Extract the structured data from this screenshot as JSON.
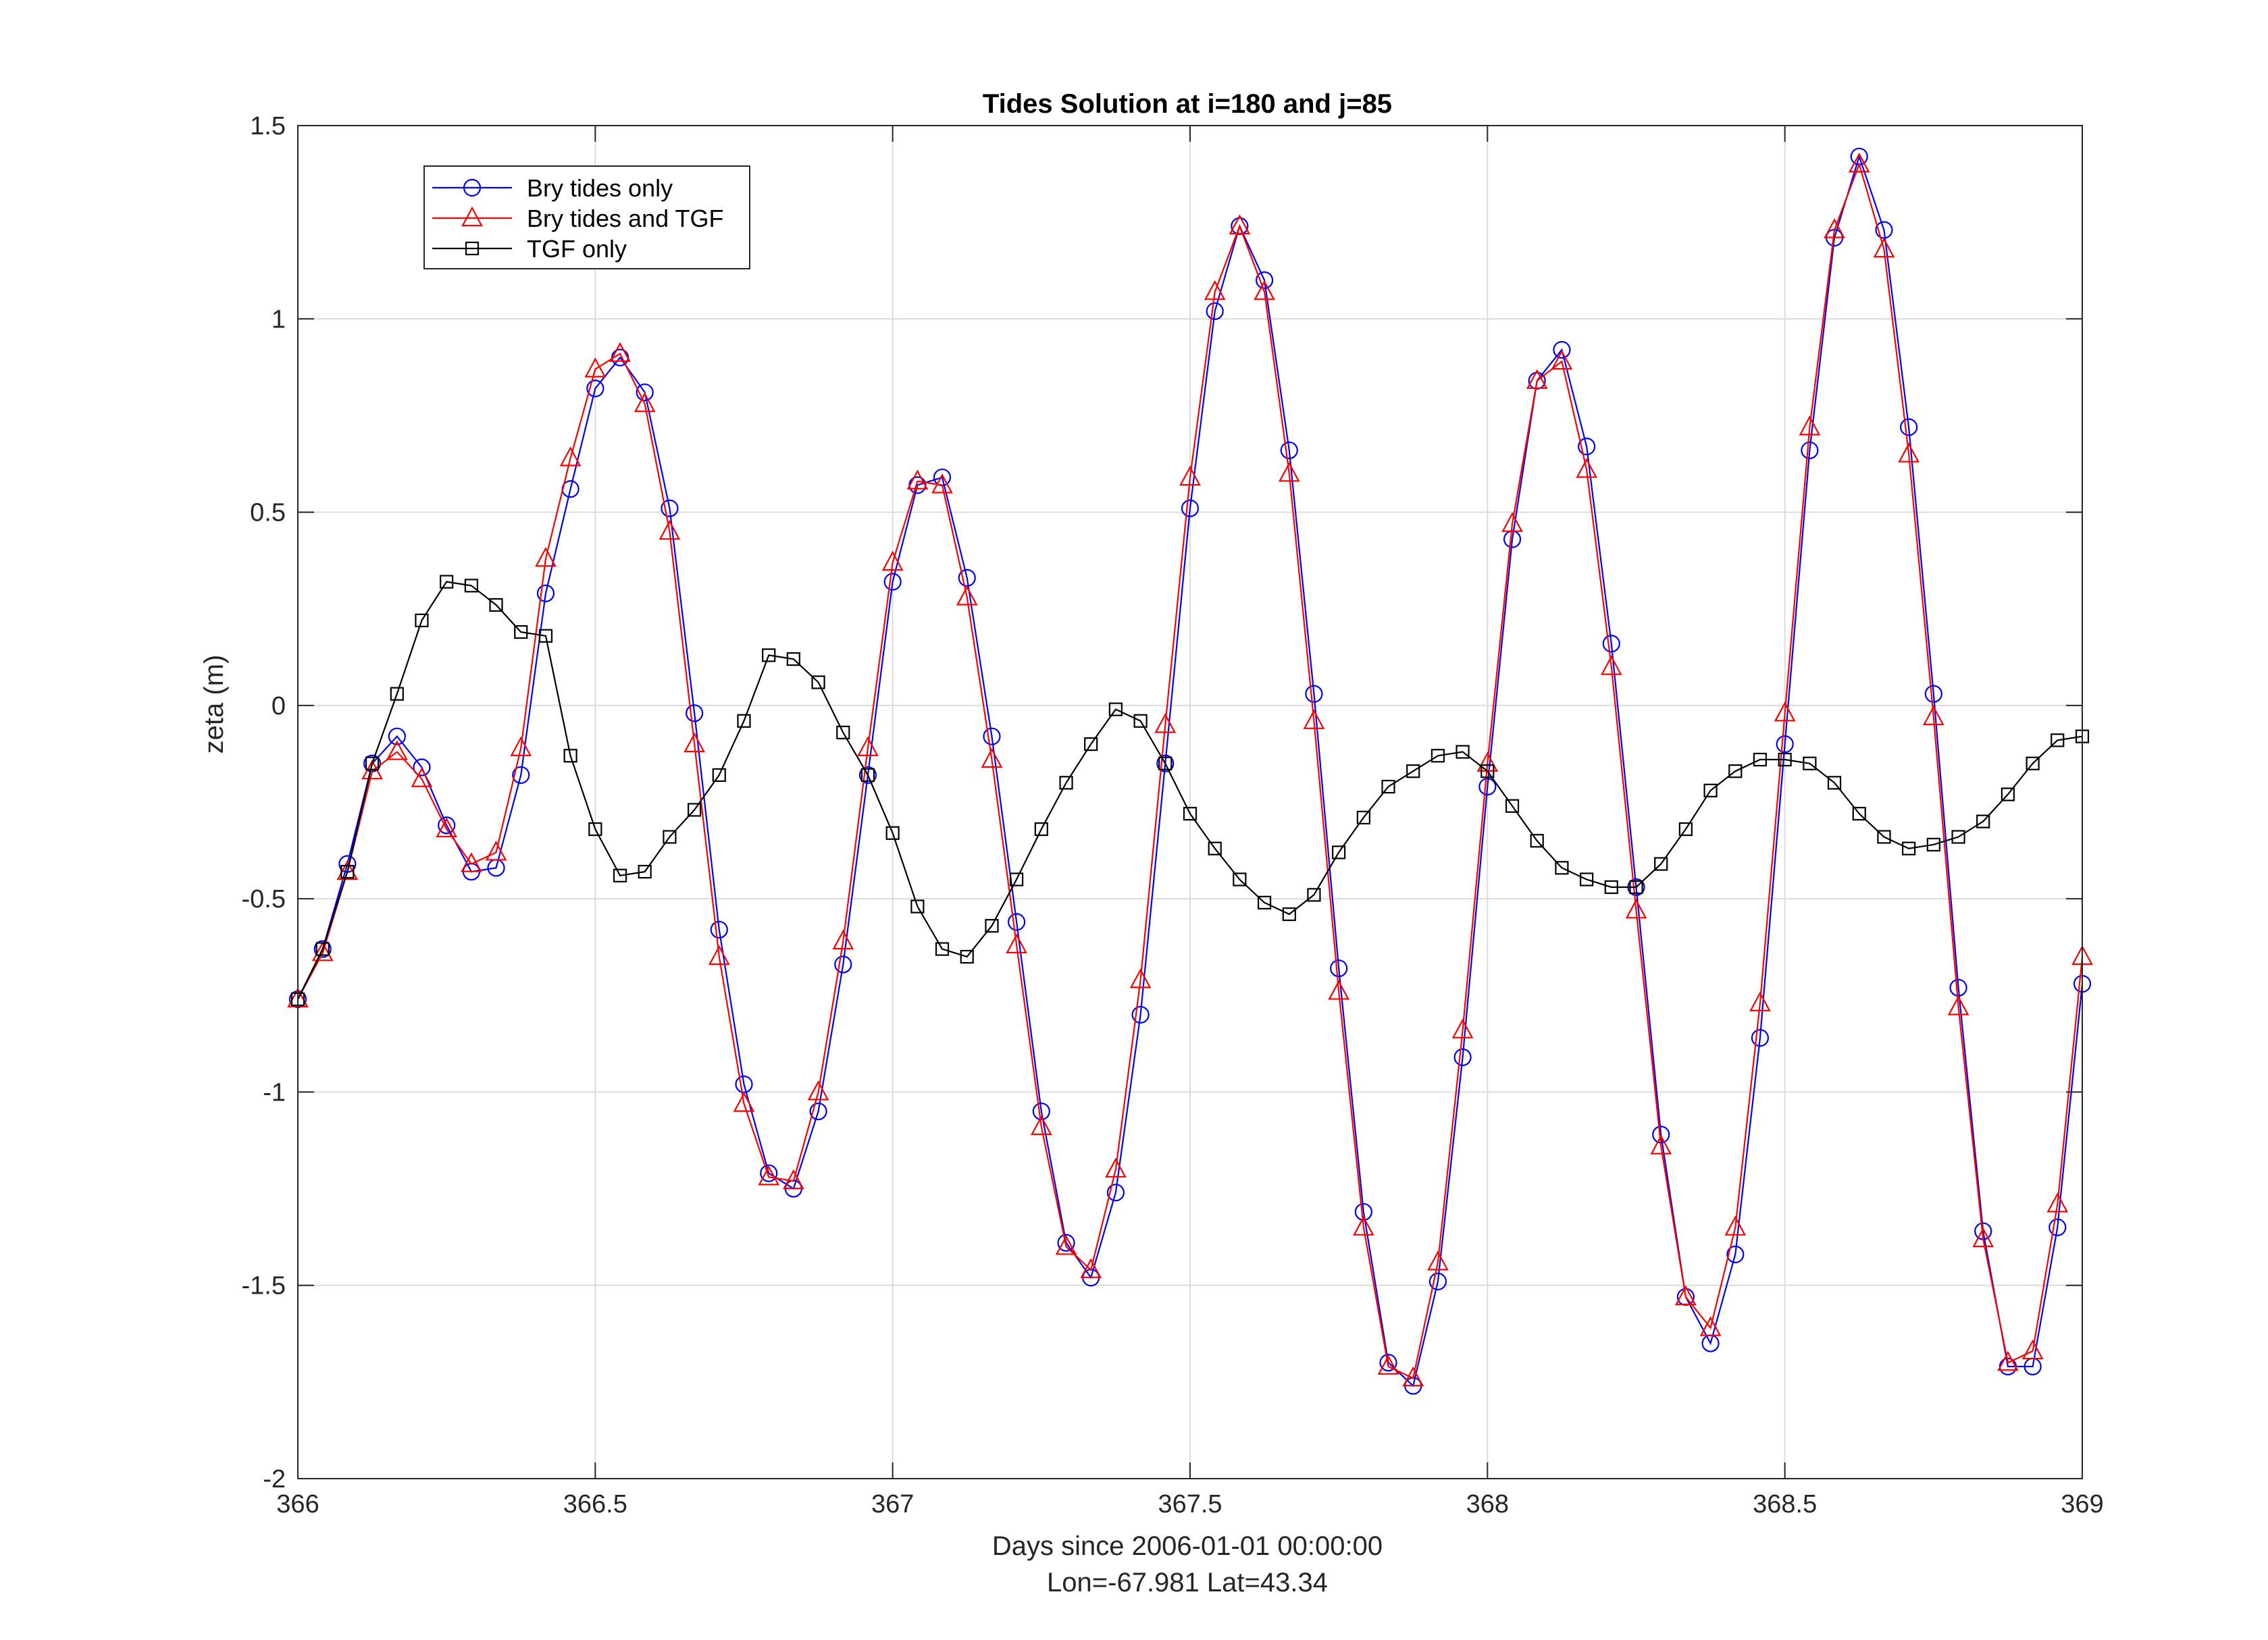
{
  "chart_data": {
    "type": "line",
    "title": "Tides Solution at  i=180 and j=85",
    "xlabel": "Days since 2006-01-01 00:00:00",
    "xlabel2": "Lon=-67.981     Lat=43.34",
    "ylabel": "zeta (m)",
    "xlim": [
      366,
      369
    ],
    "ylim": [
      -2,
      1.5
    ],
    "xticks": [
      366,
      366.5,
      367,
      367.5,
      368,
      368.5,
      369
    ],
    "xtick_labels": [
      "366",
      "366.5",
      "367",
      "367.5",
      "368",
      "368.5",
      "369"
    ],
    "yticks": [
      -2,
      -1.5,
      -1,
      -0.5,
      0,
      0.5,
      1,
      1.5
    ],
    "ytick_labels": [
      "-2",
      "-1.5",
      "-1",
      "-0.5",
      "0",
      "0.5",
      "1",
      "1.5"
    ],
    "grid": true,
    "legend_position": "top-left",
    "x": [
      366.0,
      366.0417,
      366.0833,
      366.125,
      366.1667,
      366.2083,
      366.25,
      366.2917,
      366.3333,
      366.375,
      366.4167,
      366.4583,
      366.5,
      366.5417,
      366.5833,
      366.625,
      366.6667,
      366.7083,
      366.75,
      366.7917,
      366.8333,
      366.875,
      366.9167,
      366.9583,
      367.0,
      367.0417,
      367.0833,
      367.125,
      367.1667,
      367.2083,
      367.25,
      367.2917,
      367.3333,
      367.375,
      367.4167,
      367.4583,
      367.5,
      367.5417,
      367.5833,
      367.625,
      367.6667,
      367.7083,
      367.75,
      367.7917,
      367.8333,
      367.875,
      367.9167,
      367.9583,
      368.0,
      368.0417,
      368.0833,
      368.125,
      368.1667,
      368.2083,
      368.25,
      368.2917,
      368.3333,
      368.375,
      368.4167,
      368.4583,
      368.5,
      368.5417,
      368.5833,
      368.625,
      368.6667,
      368.7083,
      368.75,
      368.7917,
      368.8333,
      368.875,
      368.9167,
      368.9583,
      369.0
    ],
    "series": [
      {
        "name": "Bry tides only",
        "color": "#0000ff",
        "marker": "circle",
        "values": [
          -0.76,
          -0.63,
          -0.41,
          -0.15,
          -0.08,
          -0.16,
          -0.31,
          -0.43,
          -0.42,
          -0.18,
          0.29,
          0.56,
          0.82,
          0.9,
          0.81,
          0.51,
          -0.02,
          -0.58,
          -0.98,
          -1.21,
          -1.25,
          -1.05,
          -0.67,
          -0.18,
          0.32,
          0.57,
          0.59,
          0.33,
          -0.08,
          -0.56,
          -1.05,
          -1.39,
          -1.48,
          -1.26,
          -0.8,
          -0.15,
          0.51,
          1.02,
          1.24,
          1.1,
          0.66,
          0.03,
          -0.68,
          -1.31,
          -1.7,
          -1.76,
          -1.49,
          -0.91,
          -0.21,
          0.43,
          0.84,
          0.92,
          0.67,
          0.16,
          -0.47,
          -1.11,
          -1.53,
          -1.65,
          -1.42,
          -0.86,
          -0.1,
          0.66,
          1.21,
          1.42,
          1.23,
          0.72,
          0.03,
          -0.73,
          -1.36,
          -1.71,
          -1.71,
          -1.35,
          -0.72
        ]
      },
      {
        "name": "Bry tides and TGF",
        "color": "#ff0000",
        "marker": "triangle",
        "values": [
          -0.76,
          -0.64,
          -0.43,
          -0.17,
          -0.12,
          -0.19,
          -0.32,
          -0.41,
          -0.38,
          -0.11,
          0.38,
          0.64,
          0.87,
          0.91,
          0.78,
          0.45,
          -0.1,
          -0.65,
          -1.03,
          -1.22,
          -1.23,
          -1.0,
          -0.61,
          -0.11,
          0.37,
          0.58,
          0.57,
          0.28,
          -0.14,
          -0.62,
          -1.09,
          -1.4,
          -1.46,
          -1.2,
          -0.71,
          -0.05,
          0.59,
          1.07,
          1.24,
          1.07,
          0.6,
          -0.04,
          -0.74,
          -1.35,
          -1.71,
          -1.74,
          -1.44,
          -0.84,
          -0.15,
          0.47,
          0.84,
          0.89,
          0.61,
          0.1,
          -0.53,
          -1.14,
          -1.53,
          -1.61,
          -1.35,
          -0.77,
          -0.02,
          0.72,
          1.23,
          1.4,
          1.18,
          0.65,
          -0.03,
          -0.78,
          -1.38,
          -1.7,
          -1.67,
          -1.29,
          -0.65
        ]
      },
      {
        "name": "TGF only",
        "color": "#000000",
        "marker": "square",
        "values": [
          -0.76,
          -0.63,
          -0.43,
          -0.15,
          0.03,
          0.22,
          0.32,
          0.31,
          0.26,
          0.19,
          0.18,
          -0.13,
          -0.32,
          -0.44,
          -0.43,
          -0.34,
          -0.27,
          -0.18,
          -0.04,
          0.13,
          0.12,
          0.06,
          -0.07,
          -0.18,
          -0.33,
          -0.52,
          -0.63,
          -0.65,
          -0.57,
          -0.45,
          -0.32,
          -0.2,
          -0.1,
          -0.01,
          -0.04,
          -0.15,
          -0.28,
          -0.37,
          -0.45,
          -0.51,
          -0.54,
          -0.49,
          -0.38,
          -0.29,
          -0.21,
          -0.17,
          -0.13,
          -0.12,
          -0.17,
          -0.26,
          -0.35,
          -0.42,
          -0.45,
          -0.47,
          -0.47,
          -0.41,
          -0.32,
          -0.22,
          -0.17,
          -0.14,
          -0.14,
          -0.15,
          -0.2,
          -0.28,
          -0.34,
          -0.37,
          -0.36,
          -0.34,
          -0.3,
          -0.23,
          -0.15,
          -0.09,
          -0.08
        ]
      }
    ]
  }
}
